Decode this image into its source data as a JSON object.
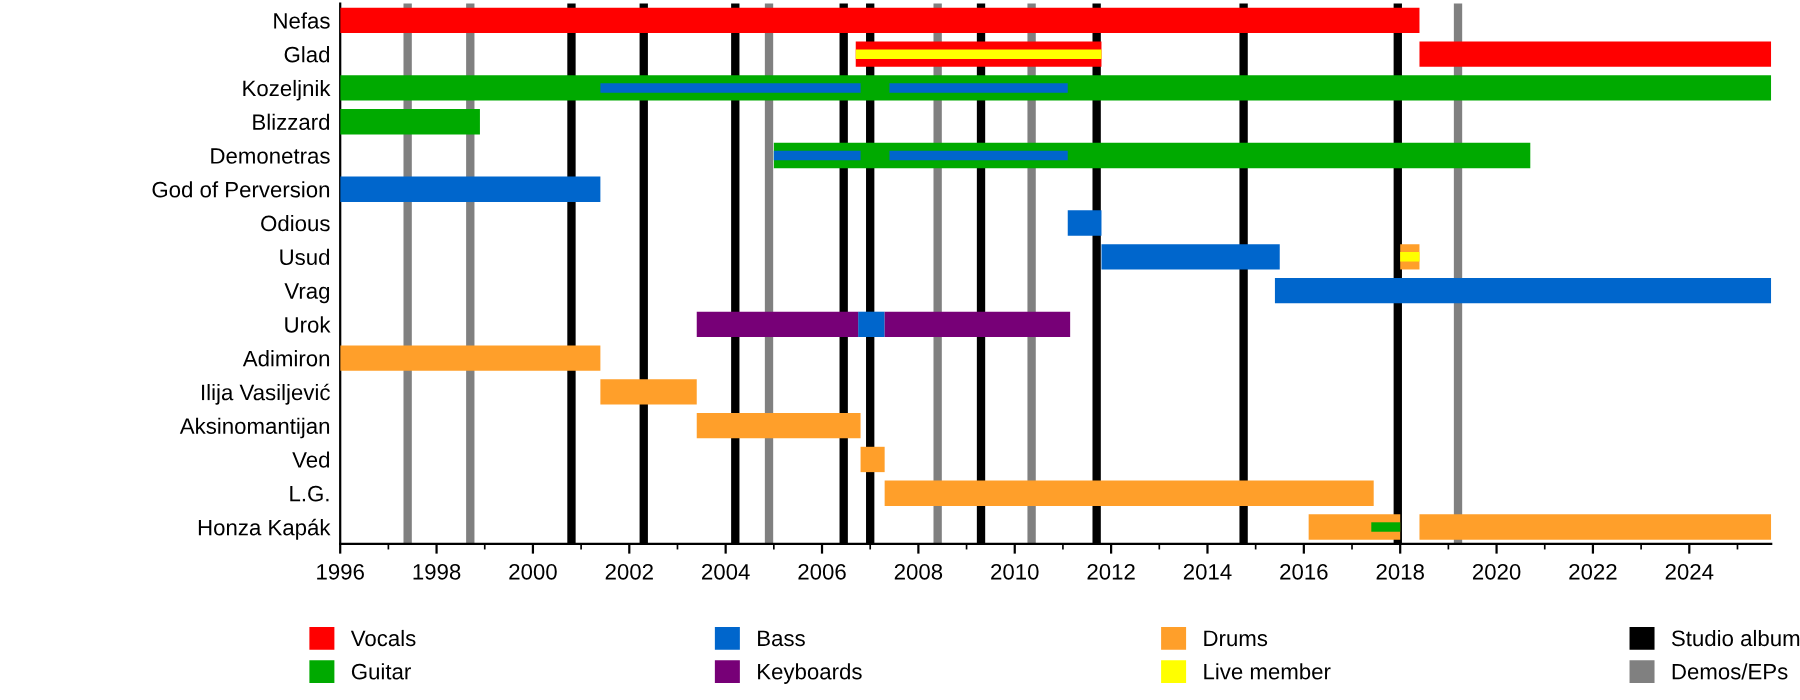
{
  "chart_data": {
    "type": "bar",
    "orientation": "horizontal",
    "categories": [
      "Nefas",
      "Glad",
      "Kozeljnik",
      "Blizzard",
      "Demonetras",
      "God of Perversion",
      "Odious",
      "Usud",
      "Vrag",
      "Urok",
      "Adimiron",
      "Ilija Vasiljević",
      "Aksinomantijan",
      "Ved",
      "L.G.",
      "Honza Kapák"
    ],
    "series": [
      {
        "name": "Vocals",
        "color": "#ff0000",
        "base": [
          1996,
          2006.7,
          null,
          null,
          null,
          null,
          null,
          null,
          null,
          null,
          null,
          null,
          null,
          null,
          null,
          null
        ],
        "values": [
          22.4,
          5.1,
          null,
          null,
          null,
          null,
          null,
          null,
          null,
          null,
          null,
          null,
          null,
          null,
          null,
          null
        ]
      },
      {
        "color": "#ff0000",
        "base": [
          null,
          2018.4,
          null,
          null,
          null,
          null,
          null,
          null,
          null,
          null,
          null,
          null,
          null,
          null,
          null,
          null
        ],
        "values": [
          null,
          7.3,
          null,
          null,
          null,
          null,
          null,
          null,
          null,
          null,
          null,
          null,
          null,
          null,
          null,
          null
        ]
      },
      {
        "name": "Guitar",
        "color": "#00aa00",
        "base": [
          null,
          null,
          1996,
          1996,
          2005.0,
          null,
          null,
          null,
          null,
          null,
          null,
          null,
          null,
          null,
          null,
          null
        ],
        "values": [
          null,
          null,
          29.7,
          2.9,
          15.7,
          null,
          null,
          null,
          null,
          null,
          null,
          null,
          null,
          null,
          null,
          null
        ]
      },
      {
        "name": "Bass",
        "color": "#0066cc",
        "base": [
          null,
          null,
          2001.4,
          null,
          2005.0,
          1996,
          2011.1,
          2011.8,
          2015.4,
          2006.75,
          null,
          null,
          null,
          null,
          null,
          null
        ],
        "values": [
          null,
          null,
          5.4,
          null,
          1.8,
          5.4,
          0.7,
          3.7,
          10.3,
          0.55,
          null,
          null,
          null,
          null,
          null,
          null
        ]
      },
      {
        "color": "#0066cc",
        "base": [
          null,
          null,
          2007.4,
          null,
          2007.4,
          null,
          null,
          null,
          null,
          null,
          null,
          null,
          null,
          null,
          null,
          null
        ],
        "values": [
          null,
          null,
          3.7,
          null,
          3.7,
          null,
          null,
          null,
          null,
          null,
          null,
          null,
          null,
          null,
          null,
          null
        ]
      },
      {
        "name": "Keyboards",
        "color": "#770077",
        "base": [
          null,
          null,
          null,
          null,
          null,
          null,
          null,
          null,
          null,
          2003.4,
          null,
          null,
          null,
          null,
          null,
          null
        ],
        "values": [
          null,
          null,
          null,
          null,
          null,
          null,
          null,
          null,
          null,
          3.35,
          null,
          null,
          null,
          null,
          null,
          null
        ]
      },
      {
        "color": "#770077",
        "base": [
          null,
          null,
          null,
          null,
          null,
          null,
          null,
          null,
          null,
          2007.3,
          null,
          null,
          null,
          null,
          null,
          null
        ],
        "values": [
          null,
          null,
          null,
          null,
          null,
          null,
          null,
          null,
          null,
          3.85,
          null,
          null,
          null,
          null,
          null,
          null
        ]
      },
      {
        "name": "Drums",
        "color": "#ff9f2a",
        "base": [
          null,
          null,
          null,
          null,
          null,
          null,
          null,
          2018.0,
          null,
          null,
          1996,
          2001.4,
          2003.4,
          2006.8,
          2007.3,
          2016.1
        ],
        "values": [
          null,
          null,
          null,
          null,
          null,
          null,
          null,
          0.4,
          null,
          null,
          5.4,
          2.0,
          3.4,
          0.5,
          10.15,
          1.9
        ]
      },
      {
        "color": "#ff9f2a",
        "base": [
          null,
          null,
          null,
          null,
          null,
          null,
          null,
          null,
          null,
          null,
          null,
          null,
          null,
          null,
          null,
          2018.4
        ],
        "values": [
          null,
          null,
          null,
          null,
          null,
          null,
          null,
          null,
          null,
          null,
          null,
          null,
          null,
          null,
          null,
          7.3
        ]
      },
      {
        "name": "Live member",
        "color": "#ffff00",
        "base": [
          null,
          2006.7,
          null,
          null,
          null,
          null,
          null,
          2018.0,
          null,
          null,
          null,
          null,
          null,
          null,
          null,
          null
        ],
        "values": [
          null,
          5.1,
          null,
          null,
          null,
          null,
          null,
          0.4,
          null,
          null,
          null,
          null,
          null,
          null,
          null,
          null
        ]
      },
      {
        "color": "#00aa00",
        "base": [
          null,
          null,
          null,
          null,
          null,
          null,
          null,
          null,
          null,
          null,
          null,
          null,
          null,
          null,
          null,
          2017.4
        ],
        "values": [
          null,
          null,
          null,
          null,
          null,
          null,
          null,
          null,
          null,
          null,
          null,
          null,
          null,
          null,
          null,
          0.6
        ]
      }
    ],
    "ref_lines": [
      {
        "axis": "x",
        "value": 2000.8,
        "color": "#000000",
        "label": "Studio album"
      },
      {
        "axis": "x",
        "value": 2002.3,
        "color": "#000000"
      },
      {
        "axis": "x",
        "value": 2004.2,
        "color": "#000000"
      },
      {
        "axis": "x",
        "value": 2006.45,
        "color": "#000000"
      },
      {
        "axis": "x",
        "value": 2007.0,
        "color": "#000000"
      },
      {
        "axis": "x",
        "value": 2009.3,
        "color": "#000000"
      },
      {
        "axis": "x",
        "value": 2011.7,
        "color": "#000000"
      },
      {
        "axis": "x",
        "value": 2014.75,
        "color": "#000000"
      },
      {
        "axis": "x",
        "value": 2017.95,
        "color": "#000000"
      },
      {
        "axis": "x",
        "value": 1997.4,
        "color": "#808080",
        "label": "Demos/EPs"
      },
      {
        "axis": "x",
        "value": 1998.7,
        "color": "#808080"
      },
      {
        "axis": "x",
        "value": 2004.9,
        "color": "#808080"
      },
      {
        "axis": "x",
        "value": 2008.4,
        "color": "#808080"
      },
      {
        "axis": "x",
        "value": 2010.35,
        "color": "#808080"
      },
      {
        "axis": "x",
        "value": 2019.2,
        "color": "#808080"
      }
    ],
    "xlim": [
      1996,
      2025.7
    ],
    "xticks": [
      1996,
      1998,
      2000,
      2002,
      2004,
      2006,
      2008,
      2010,
      2012,
      2014,
      2016,
      2018,
      2020,
      2022,
      2024
    ],
    "grid": false,
    "legend": "bottom"
  }
}
